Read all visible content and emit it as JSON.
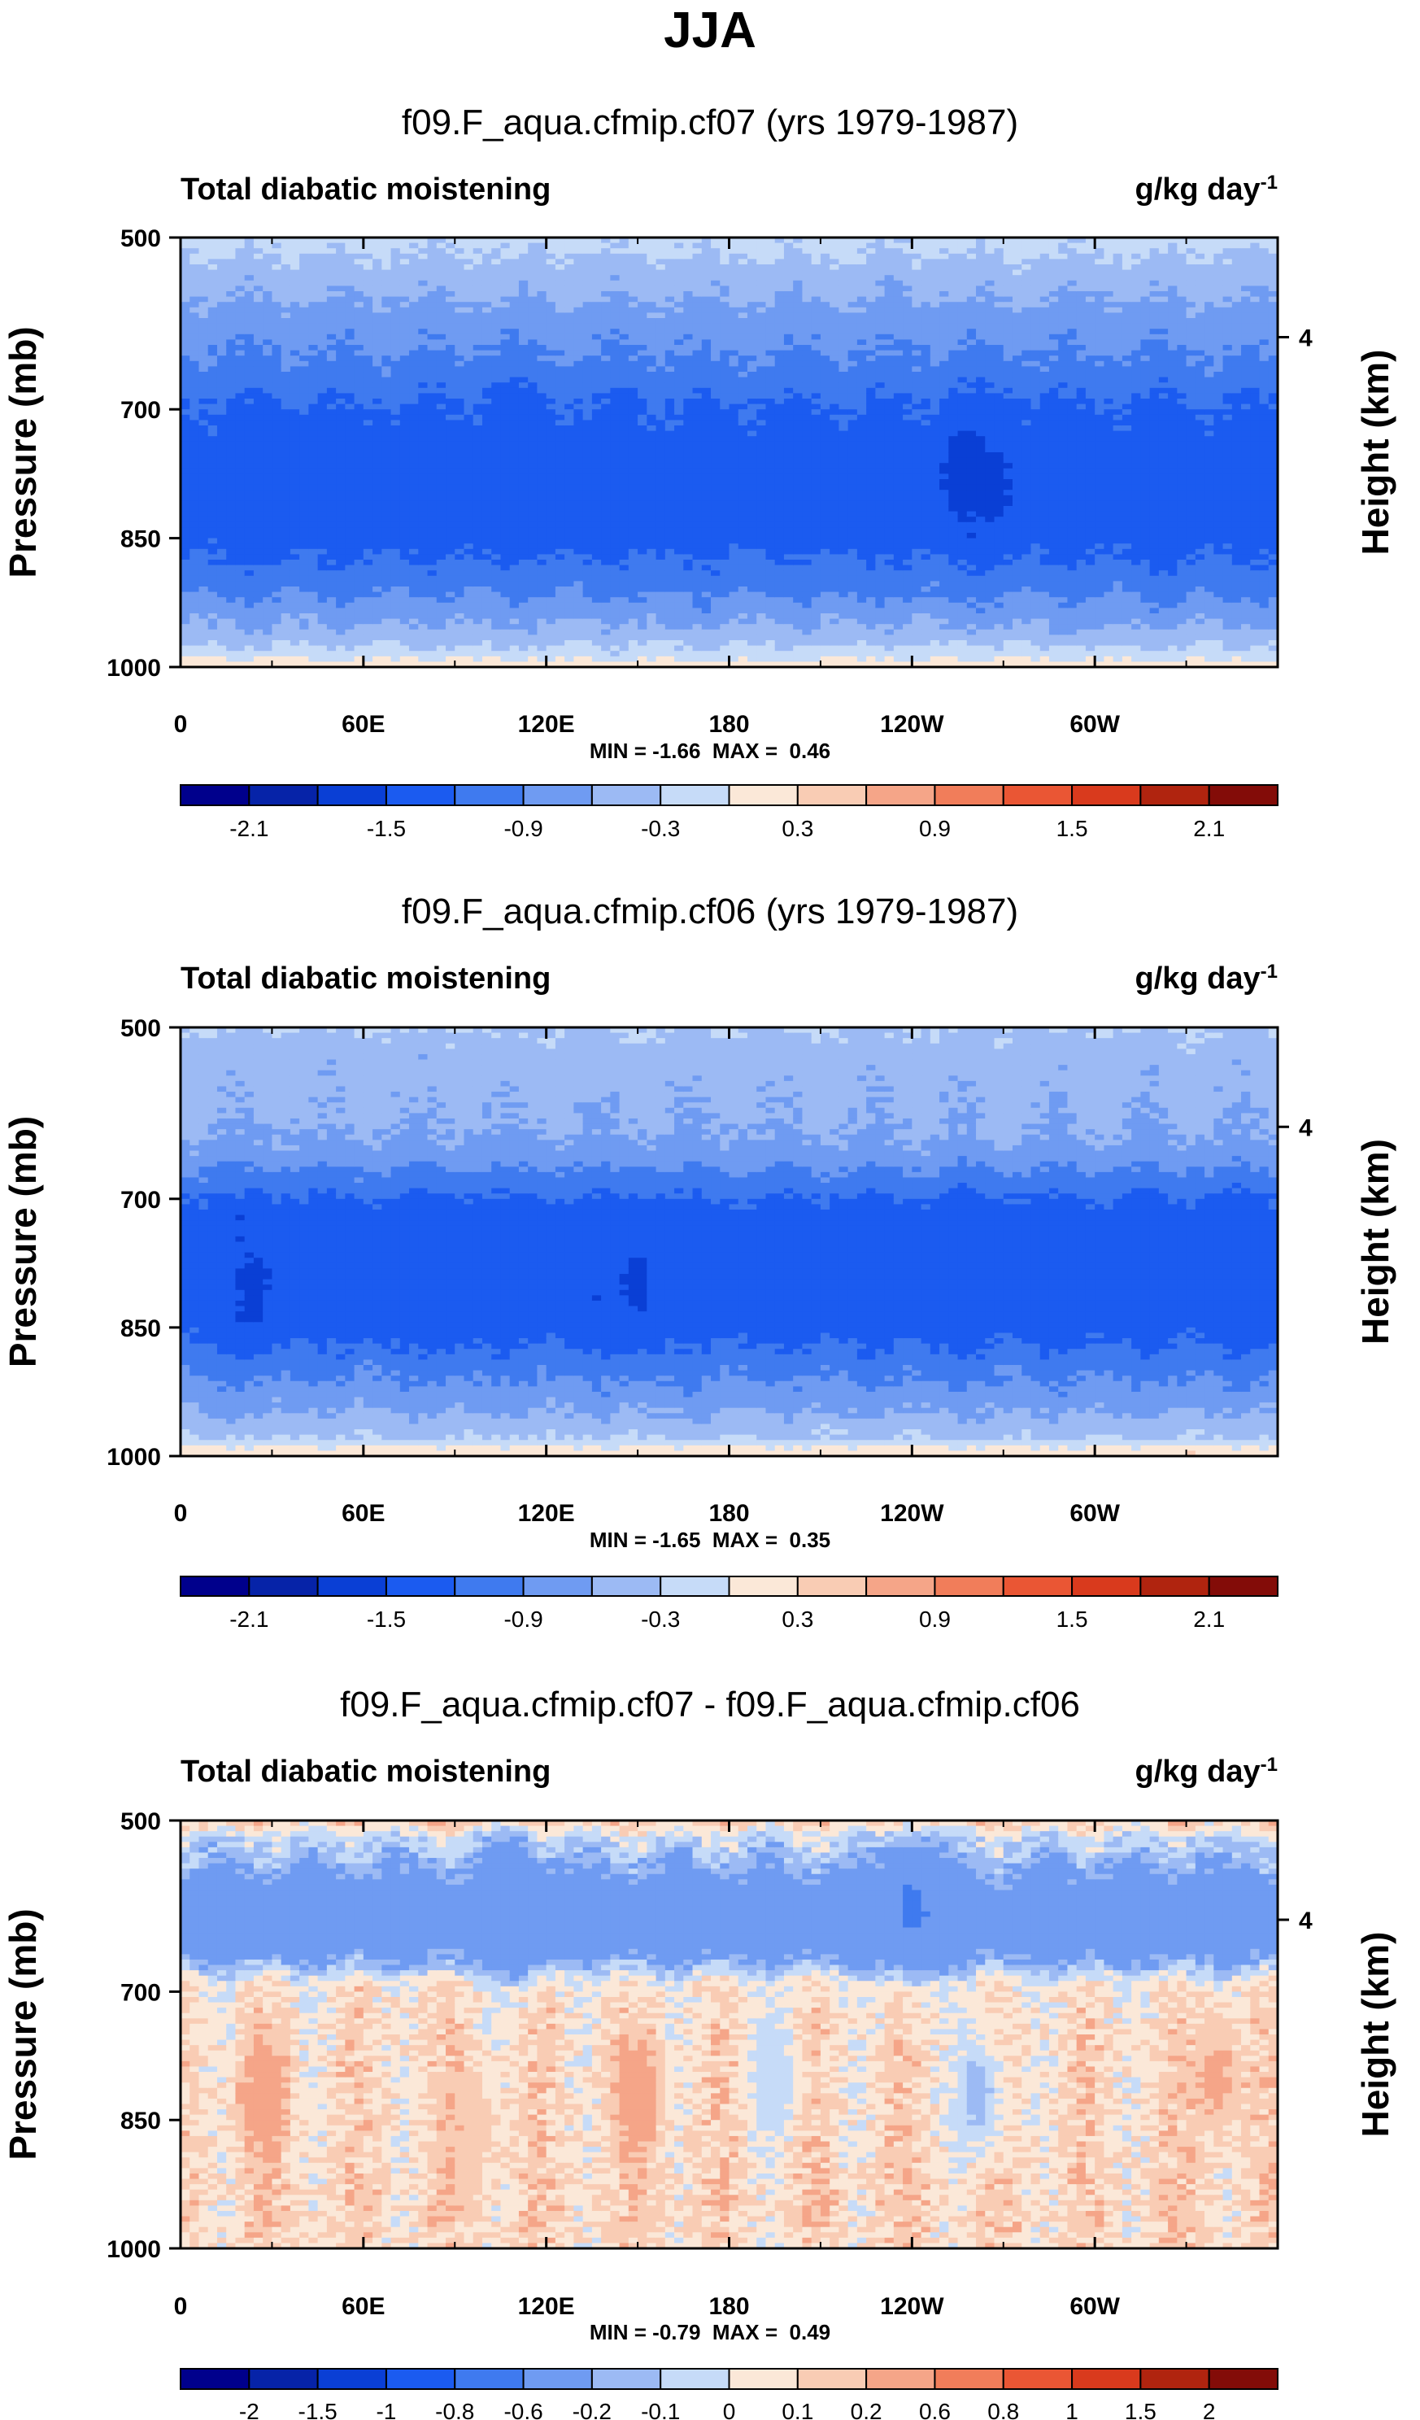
{
  "figure": {
    "title": "JJA",
    "units": "g/kg day",
    "units_sup": "-1",
    "left_axis_label": "Pressure (mb)",
    "right_axis_label": "Height (km)"
  },
  "chart_data": [
    {
      "type": "heatmap",
      "title": "f09.F_aqua.cfmip.cf07 (yrs 1979-1987)",
      "variable": "Total diabatic moistening",
      "x_ticks": [
        "0",
        "60E",
        "120E",
        "180",
        "120W",
        "60W"
      ],
      "x_tick_values": [
        0,
        60,
        120,
        180,
        240,
        300
      ],
      "xlim": [
        0,
        360
      ],
      "y_ticks": [
        "500",
        "700",
        "850",
        "1000"
      ],
      "y_tick_values": [
        500,
        700,
        850,
        1000
      ],
      "ylim": [
        1000,
        500
      ],
      "y2_ticks": [
        "4"
      ],
      "y2_tick_pressure": [
        616
      ],
      "stats": "MIN = -1.66  MAX =  0.46",
      "levels": [
        -2.4,
        -2.1,
        -1.8,
        -1.5,
        -1.2,
        -0.9,
        -0.6,
        -0.3,
        0,
        0.3,
        0.6,
        0.9,
        1.2,
        1.5,
        1.8,
        2.1,
        2.4
      ],
      "colorbar_labels": [
        "-2.1",
        "-1.5",
        "-0.9",
        "-0.3",
        "0.3",
        "0.9",
        "1.5",
        "2.1"
      ],
      "colorbar_label_boundaries": [
        1,
        3,
        5,
        7,
        9,
        11,
        13,
        15
      ],
      "profile_pressure": [
        500,
        520,
        545,
        570,
        600,
        635,
        665,
        690,
        715,
        740,
        850,
        880,
        905,
        925,
        945,
        960,
        975,
        985,
        995,
        1000
      ],
      "profile_values": [
        -0.2,
        -0.3,
        -0.45,
        -0.6,
        -0.75,
        -0.9,
        -1.05,
        -1.2,
        -1.28,
        -1.35,
        -1.35,
        -1.15,
        -1.0,
        -0.85,
        -0.65,
        -0.5,
        -0.3,
        -0.15,
        0.1,
        0.2
      ],
      "min_marks": [
        {
          "x": 30,
          "p": 790,
          "v": -1.5
        },
        {
          "x": 256,
          "p": 770,
          "v": -1.6
        },
        {
          "x": 268,
          "p": 790,
          "v": -1.55
        },
        {
          "x": 108,
          "p": 745,
          "v": -1.5
        },
        {
          "x": 325,
          "p": 790,
          "v": -1.5
        }
      ]
    },
    {
      "type": "heatmap",
      "title": "f09.F_aqua.cfmip.cf06 (yrs 1979-1987)",
      "variable": "Total diabatic moistening",
      "x_ticks": [
        "0",
        "60E",
        "120E",
        "180",
        "120W",
        "60W"
      ],
      "x_tick_values": [
        0,
        60,
        120,
        180,
        240,
        300
      ],
      "xlim": [
        0,
        360
      ],
      "y_ticks": [
        "500",
        "700",
        "850",
        "1000"
      ],
      "y_tick_values": [
        500,
        700,
        850,
        1000
      ],
      "ylim": [
        1000,
        500
      ],
      "y2_ticks": [
        "4"
      ],
      "y2_tick_pressure": [
        616
      ],
      "stats": "MIN = -1.65  MAX =  0.35",
      "levels": [
        -2.4,
        -2.1,
        -1.8,
        -1.5,
        -1.2,
        -0.9,
        -0.6,
        -0.3,
        0,
        0.3,
        0.6,
        0.9,
        1.2,
        1.5,
        1.8,
        2.1,
        2.4
      ],
      "colorbar_labels": [
        "-2.1",
        "-1.5",
        "-0.9",
        "-0.3",
        "0.3",
        "0.9",
        "1.5",
        "2.1"
      ],
      "colorbar_label_boundaries": [
        1,
        3,
        5,
        7,
        9,
        11,
        13,
        15
      ],
      "profile_pressure": [
        500,
        530,
        560,
        600,
        625,
        650,
        670,
        690,
        700,
        720,
        850,
        870,
        890,
        910,
        930,
        950,
        965,
        980,
        992,
        1000
      ],
      "profile_values": [
        -0.3,
        -0.45,
        -0.5,
        -0.55,
        -0.6,
        -0.75,
        -0.95,
        -1.1,
        -1.25,
        -1.35,
        -1.35,
        -1.2,
        -1.05,
        -0.9,
        -0.75,
        -0.6,
        -0.45,
        -0.3,
        0.1,
        0.2
      ],
      "min_marks": [
        {
          "x": 25,
          "p": 800,
          "v": -1.55
        },
        {
          "x": 90,
          "p": 790,
          "v": -1.5
        },
        {
          "x": 150,
          "p": 800,
          "v": -1.55
        },
        {
          "x": 258,
          "p": 790,
          "v": -1.5
        },
        {
          "x": 348,
          "p": 790,
          "v": -1.5
        }
      ]
    },
    {
      "type": "heatmap",
      "title": "f09.F_aqua.cfmip.cf07 - f09.F_aqua.cfmip.cf06",
      "variable": "Total diabatic moistening",
      "x_ticks": [
        "0",
        "60E",
        "120E",
        "180",
        "120W",
        "60W"
      ],
      "x_tick_values": [
        0,
        60,
        120,
        180,
        240,
        300
      ],
      "xlim": [
        0,
        360
      ],
      "y_ticks": [
        "500",
        "700",
        "850",
        "1000"
      ],
      "y_tick_values": [
        500,
        700,
        850,
        1000
      ],
      "ylim": [
        1000,
        500
      ],
      "y2_ticks": [
        "4"
      ],
      "y2_tick_pressure": [
        616
      ],
      "stats": "MIN = -0.79  MAX =  0.49",
      "levels": [
        -2.5,
        -2,
        -1.5,
        -1,
        -0.8,
        -0.6,
        -0.2,
        -0.1,
        0,
        0.1,
        0.2,
        0.6,
        0.8,
        1,
        1.5,
        2,
        2.5
      ],
      "colorbar_labels": [
        "-2",
        "-1.5",
        "-1",
        "-0.8",
        "-0.6",
        "-0.2",
        "-0.1",
        "0",
        "0.1",
        "0.2",
        "0.6",
        "0.8",
        "1",
        "1.5",
        "2"
      ],
      "colorbar_label_boundaries": [
        1,
        2,
        3,
        4,
        5,
        6,
        7,
        8,
        9,
        10,
        11,
        12,
        13,
        14,
        15
      ],
      "profile_pressure": [
        500,
        520,
        545,
        575,
        610,
        645,
        670,
        690,
        720,
        800,
        880,
        950,
        1000
      ],
      "profile_values": [
        0.15,
        -0.05,
        -0.15,
        -0.3,
        -0.45,
        -0.35,
        -0.15,
        0.05,
        0.08,
        0.1,
        0.1,
        0.12,
        0.1
      ],
      "min_marks": [
        {
          "x": 28,
          "p": 820,
          "v": 0.3
        },
        {
          "x": 150,
          "p": 820,
          "v": 0.3
        },
        {
          "x": 95,
          "p": 860,
          "v": 0.2
        },
        {
          "x": 195,
          "p": 800,
          "v": -0.1
        },
        {
          "x": 262,
          "p": 820,
          "v": -0.15
        },
        {
          "x": 340,
          "p": 800,
          "v": 0.25
        },
        {
          "x": 240,
          "p": 600,
          "v": -0.65
        },
        {
          "x": 110,
          "p": 600,
          "v": -0.6
        }
      ]
    }
  ],
  "palette": [
    "#00008c",
    "#0623a8",
    "#0a3fd5",
    "#1b5bf0",
    "#3f7aef",
    "#6f9bf2",
    "#9cbaf4",
    "#c6dbf8",
    "#fbe8d8",
    "#f9ccb4",
    "#f5a588",
    "#f17d5a",
    "#ea5634",
    "#d93a1d",
    "#b0240f",
    "#830c08"
  ]
}
